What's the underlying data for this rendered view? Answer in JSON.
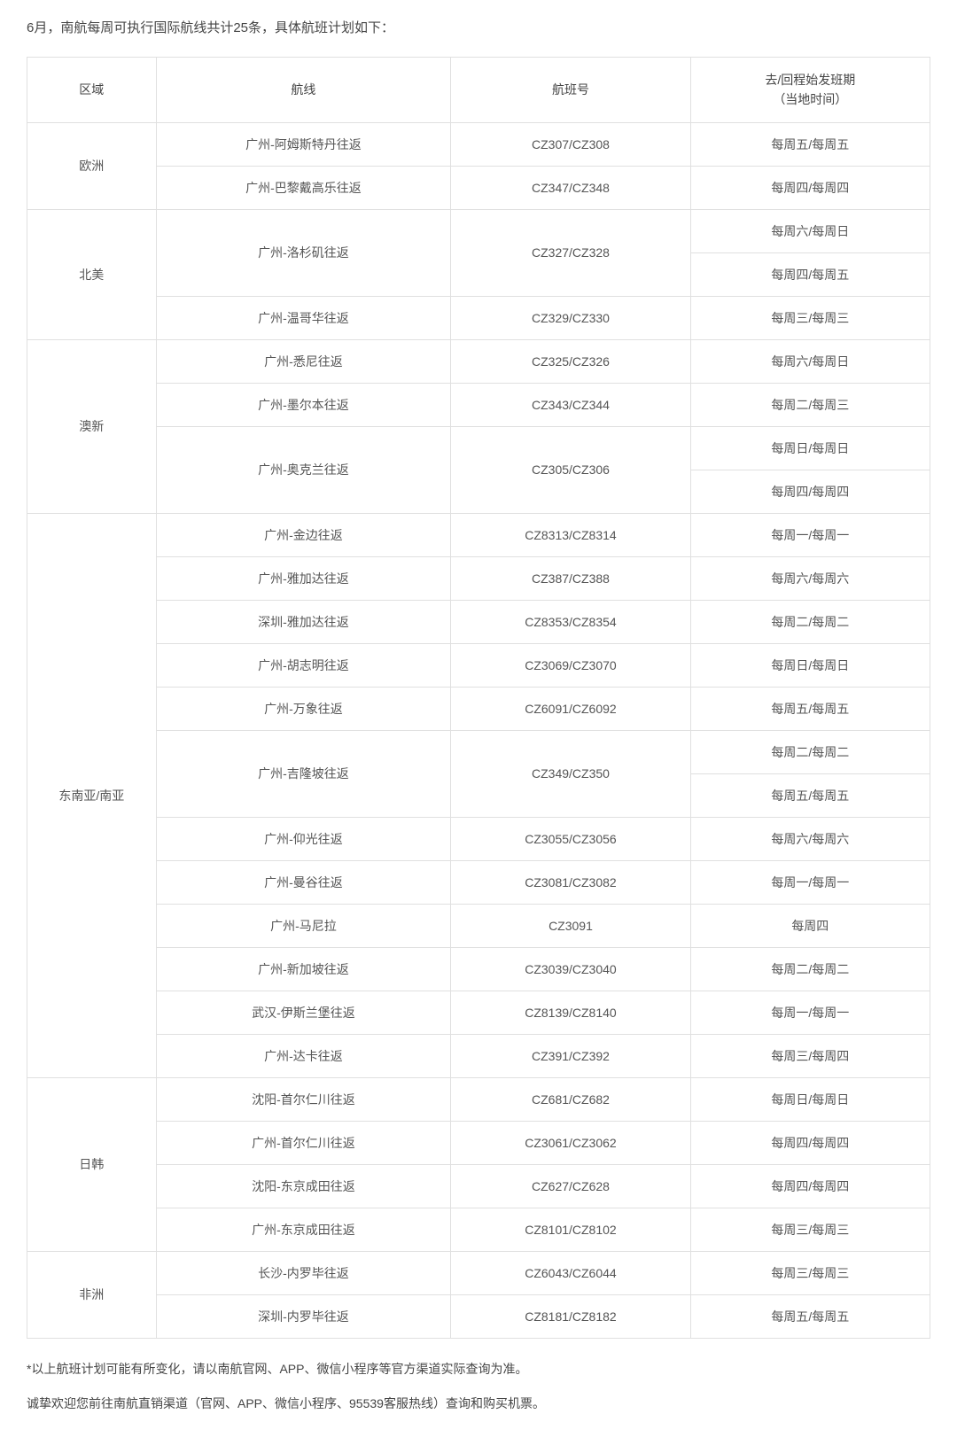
{
  "intro": "6月，南航每周可执行国际航线共计25条，具体航班计划如下：",
  "headers": {
    "region": "区域",
    "route": "航线",
    "flight": "航班号",
    "schedule": "去/回程始发班期\n（当地时间）"
  },
  "colors": {
    "border": "#e0e0e0",
    "text": "#555555",
    "intro_text": "#444444",
    "background": "#ffffff"
  },
  "font_sizes": {
    "intro": 15,
    "table": 14,
    "footnote": 14
  },
  "regions": [
    {
      "name": "欧洲",
      "routes": [
        {
          "route": "广州-阿姆斯特丹往返",
          "flight": "CZ307/CZ308",
          "schedules": [
            "每周五/每周五"
          ]
        },
        {
          "route": "广州-巴黎戴高乐往返",
          "flight": "CZ347/CZ348",
          "schedules": [
            "每周四/每周四"
          ]
        }
      ]
    },
    {
      "name": "北美",
      "routes": [
        {
          "route": "广州-洛杉矶往返",
          "flight": "CZ327/CZ328",
          "schedules": [
            "每周六/每周日",
            "每周四/每周五"
          ]
        },
        {
          "route": "广州-温哥华往返",
          "flight": "CZ329/CZ330",
          "schedules": [
            "每周三/每周三"
          ]
        }
      ]
    },
    {
      "name": "澳新",
      "routes": [
        {
          "route": "广州-悉尼往返",
          "flight": "CZ325/CZ326",
          "schedules": [
            "每周六/每周日"
          ]
        },
        {
          "route": "广州-墨尔本往返",
          "flight": "CZ343/CZ344",
          "schedules": [
            "每周二/每周三"
          ]
        },
        {
          "route": "广州-奥克兰往返",
          "flight": "CZ305/CZ306",
          "schedules": [
            "每周日/每周日",
            "每周四/每周四"
          ]
        }
      ]
    },
    {
      "name": "东南亚/南亚",
      "routes": [
        {
          "route": "广州-金边往返",
          "flight": "CZ8313/CZ8314",
          "schedules": [
            "每周一/每周一"
          ]
        },
        {
          "route": "广州-雅加达往返",
          "flight": "CZ387/CZ388",
          "schedules": [
            "每周六/每周六"
          ]
        },
        {
          "route": "深圳-雅加达往返",
          "flight": "CZ8353/CZ8354",
          "schedules": [
            "每周二/每周二"
          ]
        },
        {
          "route": "广州-胡志明往返",
          "flight": "CZ3069/CZ3070",
          "schedules": [
            "每周日/每周日"
          ]
        },
        {
          "route": "广州-万象往返",
          "flight": "CZ6091/CZ6092",
          "schedules": [
            "每周五/每周五"
          ]
        },
        {
          "route": "广州-吉隆坡往返",
          "flight": "CZ349/CZ350",
          "schedules": [
            "每周二/每周二",
            "每周五/每周五"
          ]
        },
        {
          "route": "广州-仰光往返",
          "flight": "CZ3055/CZ3056",
          "schedules": [
            "每周六/每周六"
          ]
        },
        {
          "route": "广州-曼谷往返",
          "flight": "CZ3081/CZ3082",
          "schedules": [
            "每周一/每周一"
          ]
        },
        {
          "route": "广州-马尼拉",
          "flight": "CZ3091",
          "schedules": [
            "每周四"
          ]
        },
        {
          "route": "广州-新加坡往返",
          "flight": "CZ3039/CZ3040",
          "schedules": [
            "每周二/每周二"
          ]
        },
        {
          "route": "武汉-伊斯兰堡往返",
          "flight": "CZ8139/CZ8140",
          "schedules": [
            "每周一/每周一"
          ]
        },
        {
          "route": "广州-达卡往返",
          "flight": "CZ391/CZ392",
          "schedules": [
            "每周三/每周四"
          ]
        }
      ]
    },
    {
      "name": "日韩",
      "routes": [
        {
          "route": "沈阳-首尔仁川往返",
          "flight": "CZ681/CZ682",
          "schedules": [
            "每周日/每周日"
          ]
        },
        {
          "route": "广州-首尔仁川往返",
          "flight": "CZ3061/CZ3062",
          "schedules": [
            "每周四/每周四"
          ]
        },
        {
          "route": "沈阳-东京成田往返",
          "flight": "CZ627/CZ628",
          "schedules": [
            "每周四/每周四"
          ]
        },
        {
          "route": "广州-东京成田往返",
          "flight": "CZ8101/CZ8102",
          "schedules": [
            "每周三/每周三"
          ]
        }
      ]
    },
    {
      "name": "非洲",
      "routes": [
        {
          "route": "长沙-内罗毕往返",
          "flight": "CZ6043/CZ6044",
          "schedules": [
            "每周三/每周三"
          ]
        },
        {
          "route": "深圳-内罗毕往返",
          "flight": "CZ8181/CZ8182",
          "schedules": [
            "每周五/每周五"
          ]
        }
      ]
    }
  ],
  "footnotes": [
    "*以上航班计划可能有所变化，请以南航官网、APP、微信小程序等官方渠道实际查询为准。",
    "诚挚欢迎您前往南航直销渠道（官网、APP、微信小程序、95539客服热线）查询和购买机票。"
  ]
}
